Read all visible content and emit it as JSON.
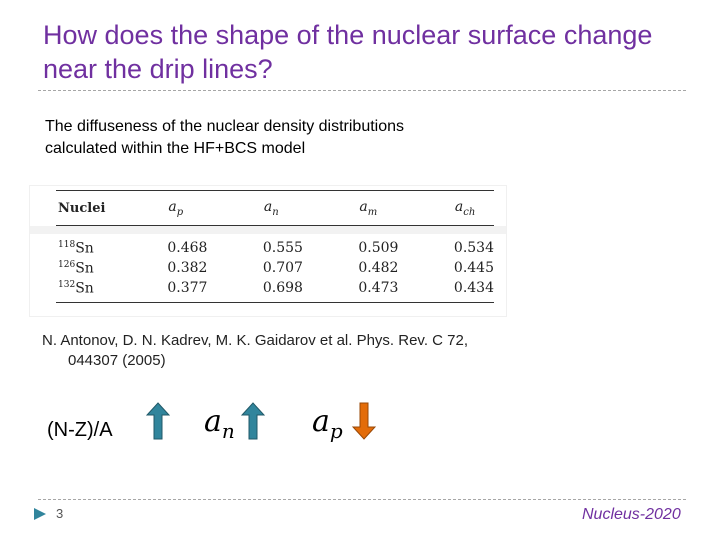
{
  "slide": {
    "title": "How does the shape of the nuclear surface change near the drip lines?",
    "subtitle": "The diffuseness of the nuclear density distributions  calculated within the HF+BCS model",
    "reference_line1": "N. Antonov, D. N. Kadrev, M. K. Gaidarov et al. Phys. Rev. C 72,",
    "reference_line2": "044307 (2005)",
    "trend_label": "(N-Z)/A",
    "symbol_an_base": "a",
    "symbol_an_sub": "n",
    "symbol_ap_base": "a",
    "symbol_ap_sub": "p",
    "page_number": "3",
    "footer": "Nucleus-2020"
  },
  "table": {
    "headers": {
      "nuclei": "Nuclei",
      "ap": "a",
      "ap_sub": "p",
      "an": "a",
      "an_sub": "n",
      "am": "a",
      "am_sub": "m",
      "ach": "a",
      "ach_sub": "ch"
    },
    "rows": [
      {
        "mass": "118",
        "element": "Sn",
        "ap": "0.468",
        "an": "0.555",
        "am": "0.509",
        "ach": "0.534"
      },
      {
        "mass": "126",
        "element": "Sn",
        "ap": "0.382",
        "an": "0.707",
        "am": "0.482",
        "ach": "0.445"
      },
      {
        "mass": "132",
        "element": "Sn",
        "ap": "0.377",
        "an": "0.698",
        "am": "0.473",
        "ach": "0.434"
      }
    ]
  },
  "colors": {
    "title": "#7030a0",
    "up_arrow": "#31859c",
    "down_arrow": "#e36c09",
    "footer": "#7030a0"
  },
  "icons": {
    "arrow_1": "arrow-up-icon",
    "arrow_2": "arrow-up-icon",
    "arrow_3": "arrow-down-icon",
    "page_marker": "triangle-right-icon"
  }
}
